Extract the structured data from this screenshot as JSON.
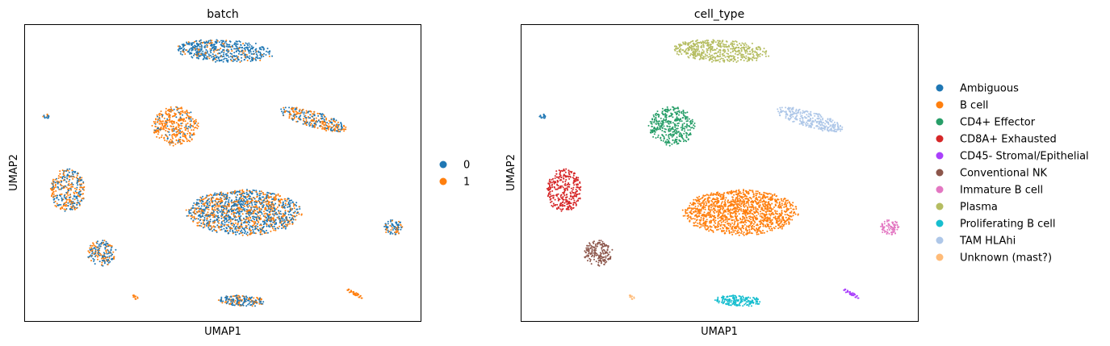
{
  "chart_data": [
    {
      "type": "scatter",
      "title": "batch",
      "xlabel": "UMAP1",
      "ylabel": "UMAP2",
      "grid": false,
      "ticks": "hidden",
      "legend_placement": "right",
      "legend": [
        {
          "label": "0",
          "color": "#1f77b4"
        },
        {
          "label": "1",
          "color": "#ff7f0e"
        }
      ],
      "clusters": [
        {
          "id": "plasma",
          "mix": [
            0.85,
            0.15
          ]
        },
        {
          "id": "b-cell",
          "mix": [
            0.55,
            0.45
          ]
        },
        {
          "id": "cd4-effector",
          "mix": [
            0.15,
            0.85
          ]
        },
        {
          "id": "cd8a-exhausted",
          "mix": [
            0.5,
            0.5
          ]
        },
        {
          "id": "tam-hlahi",
          "mix": [
            0.45,
            0.55
          ]
        },
        {
          "id": "conventional-nk",
          "mix": [
            0.6,
            0.4
          ]
        },
        {
          "id": "immature-b-cell",
          "mix": [
            0.7,
            0.3
          ]
        },
        {
          "id": "proliferating-b-cell",
          "mix": [
            0.65,
            0.35
          ]
        },
        {
          "id": "cd45-stromal-epithelial",
          "mix": [
            0.0,
            1.0
          ]
        },
        {
          "id": "unknown-mast",
          "mix": [
            0.0,
            1.0
          ]
        },
        {
          "id": "ambiguous",
          "mix": [
            0.8,
            0.2
          ]
        }
      ]
    },
    {
      "type": "scatter",
      "title": "cell_type",
      "xlabel": "UMAP1",
      "ylabel": "UMAP2",
      "grid": false,
      "ticks": "hidden",
      "legend_placement": "right",
      "legend": [
        {
          "label": "Ambiguous",
          "color": "#1f77b4"
        },
        {
          "label": "B cell",
          "color": "#ff7f0e"
        },
        {
          "label": "CD4+ Effector",
          "color": "#279e68"
        },
        {
          "label": "CD8A+ Exhausted",
          "color": "#d62728"
        },
        {
          "label": "CD45- Stromal/Epithelial",
          "color": "#aa40fc"
        },
        {
          "label": "Conventional NK",
          "color": "#8c564b"
        },
        {
          "label": "Immature B cell",
          "color": "#e377c2"
        },
        {
          "label": "Plasma",
          "color": "#b5bd61"
        },
        {
          "label": "Proliferating B cell",
          "color": "#17becf"
        },
        {
          "label": "TAM HLAhi",
          "color": "#aec7e8"
        },
        {
          "label": "Unknown (mast?)",
          "color": "#ffbb78"
        }
      ]
    }
  ]
}
